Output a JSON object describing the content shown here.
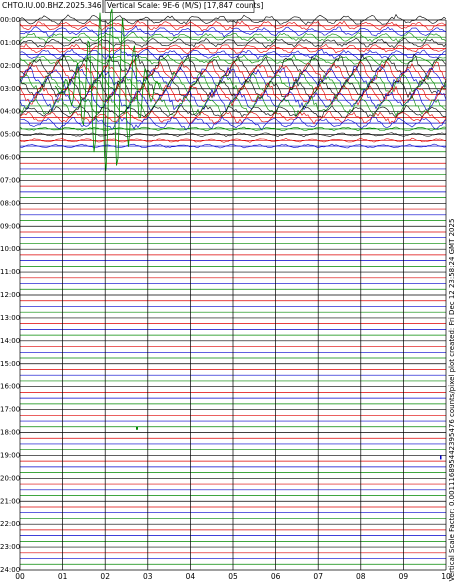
{
  "header": {
    "station": "CHTO.IU.00.BHZ.2025.346",
    "scale": "Vertical Scale: 9E-6 (M/S) [17,847 counts]"
  },
  "y_labels": [
    "00:00",
    "01:00",
    "02:00",
    "03:00",
    "04:00",
    "05:00",
    "06:00",
    "07:00",
    "08:00",
    "09:00",
    "10:00",
    "11:00",
    "12:00",
    "13:00",
    "14:00",
    "15:00",
    "16:00",
    "17:00",
    "18:00",
    "19:00",
    "20:00",
    "21:00",
    "22:00",
    "23:00",
    "24:00"
  ],
  "x_labels": [
    "00",
    "01",
    "02",
    "03",
    "04",
    "05",
    "06",
    "07",
    "08",
    "09",
    "10"
  ],
  "side_note": "Vertical Scale Factor: 0.001116895442395476 counts/pixel plot created: Fri Dec 12 23:58:24 GMT 2025"
}
